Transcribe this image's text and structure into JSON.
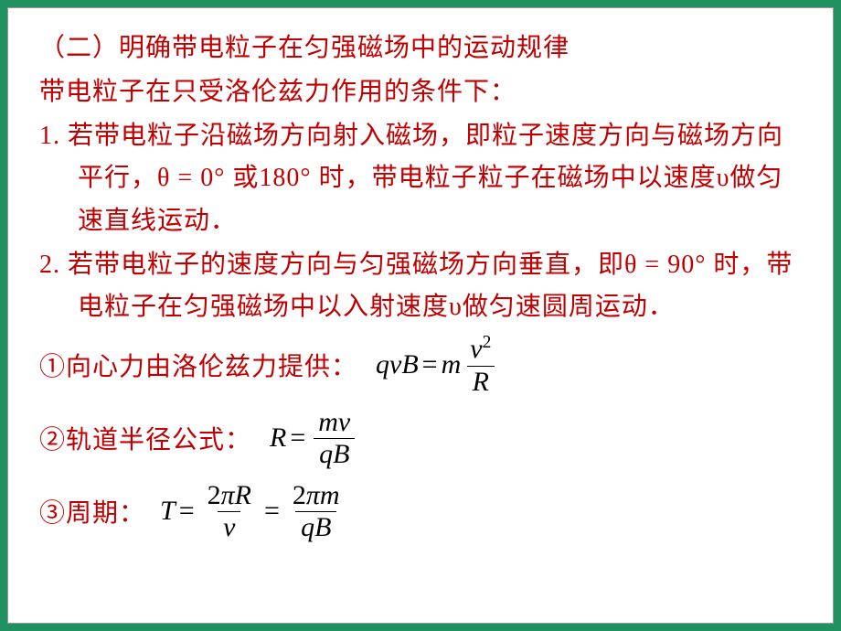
{
  "colors": {
    "text": "#c00000",
    "formula": "#000000",
    "background": "#ffffff",
    "frame": "#209060"
  },
  "typography": {
    "body_fontsize_pt": 21,
    "formula_fontsize_pt": 22,
    "font_family_cn": "KaiTi",
    "font_family_math": "Times New Roman"
  },
  "heading": "（二）明确带电粒子在匀强磁场中的运动规律",
  "subtitle": "带电粒子在只受洛伦兹力作用的条件下：",
  "items": [
    "1.  若带电粒子沿磁场方向射入磁场，即粒子速度方向与磁场方向平行，θ = 0° 或180° 时，带电粒子粒子在磁场中以速度υ做匀速直线运动．",
    "2.  若带电粒子的速度方向与匀强磁场方向垂直，即θ = 90° 时，带电粒子在匀强磁场中以入射速度υ做匀速圆周运动．"
  ],
  "formulas": [
    {
      "label": "①向心力由洛伦兹力提供：",
      "lhs": "qvB",
      "rhs_num": "v²",
      "rhs_den": "R",
      "prefix": "m",
      "plain": "qvB = m v^2 / R"
    },
    {
      "label": "②轨道半径公式：",
      "lhs": "R",
      "rhs_num": "mv",
      "rhs_den": "qB",
      "plain": "R = mv / qB"
    },
    {
      "label": "③周期：",
      "lhs": "T",
      "f1_num": "2πR",
      "f1_den": "v",
      "f2_num": "2πm",
      "f2_den": "qB",
      "plain": "T = 2πR / v = 2πm / qB"
    }
  ]
}
